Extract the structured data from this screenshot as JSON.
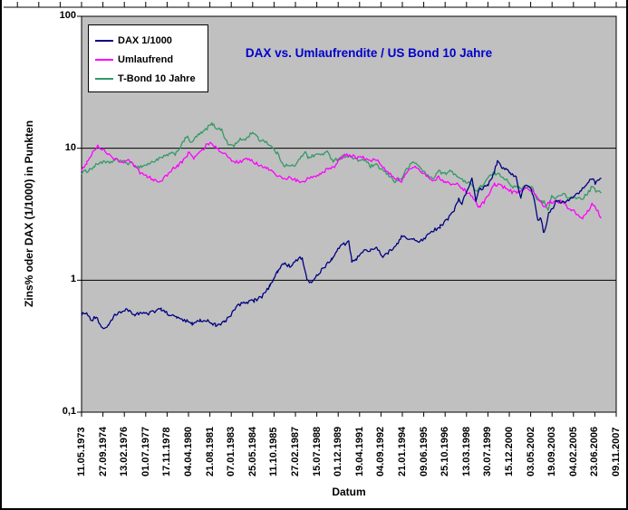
{
  "colors": {
    "title": "#0000CC",
    "plot_bg": "#C0C0C0",
    "axis": "#000000",
    "grid": "#000000",
    "background": "#FFFFFF"
  },
  "chart_data": {
    "type": "line",
    "title": "DAX vs. Umlaufrendite / US Bond 10 Jahre",
    "xlabel": "Datum",
    "ylabel": "Zins% oder DAX (1/1000) in Punkten",
    "y_scale": "log",
    "ylim": [
      0.1,
      100
    ],
    "y_ticks": [
      {
        "label": "100",
        "value": 100
      },
      {
        "label": "10",
        "value": 10
      },
      {
        "label": "1",
        "value": 1
      },
      {
        "label": "0,1",
        "value": 0.1
      }
    ],
    "y_gridlines": [
      1,
      10
    ],
    "legend_position": "top-left",
    "grid": true,
    "x_range_years": [
      1973.36,
      2007.86
    ],
    "x_tick_labels": [
      "11.05.1973",
      "27.09.1974",
      "13.02.1976",
      "01.07.1977",
      "17.11.1978",
      "04.04.1980",
      "21.08.1981",
      "07.01.1983",
      "25.05.1984",
      "11.10.1985",
      "27.02.1987",
      "15.07.1988",
      "01.12.1989",
      "19.04.1991",
      "04.09.1992",
      "21.01.1994",
      "09.06.1995",
      "25.10.1996",
      "13.03.1998",
      "30.07.1999",
      "15.12.2000",
      "03.05.2002",
      "19.09.2003",
      "04.02.2005",
      "23.06.2006",
      "09.11.2007"
    ],
    "series": [
      {
        "name": "DAX 1/1000",
        "color": "#000080",
        "points": [
          [
            1973.36,
            0.55
          ],
          [
            1973.7,
            0.57
          ],
          [
            1974.0,
            0.5
          ],
          [
            1974.3,
            0.53
          ],
          [
            1974.75,
            0.42
          ],
          [
            1975.1,
            0.46
          ],
          [
            1975.5,
            0.54
          ],
          [
            1975.9,
            0.57
          ],
          [
            1976.3,
            0.6
          ],
          [
            1976.8,
            0.55
          ],
          [
            1977.2,
            0.57
          ],
          [
            1977.6,
            0.55
          ],
          [
            1978.0,
            0.58
          ],
          [
            1978.5,
            0.6
          ],
          [
            1979.0,
            0.55
          ],
          [
            1979.5,
            0.52
          ],
          [
            1980.0,
            0.5
          ],
          [
            1980.5,
            0.47
          ],
          [
            1981.0,
            0.5
          ],
          [
            1981.5,
            0.49
          ],
          [
            1982.0,
            0.46
          ],
          [
            1982.6,
            0.48
          ],
          [
            1983.0,
            0.55
          ],
          [
            1983.5,
            0.65
          ],
          [
            1984.0,
            0.68
          ],
          [
            1984.5,
            0.7
          ],
          [
            1985.0,
            0.75
          ],
          [
            1985.5,
            0.9
          ],
          [
            1986.0,
            1.15
          ],
          [
            1986.4,
            1.35
          ],
          [
            1986.8,
            1.28
          ],
          [
            1987.2,
            1.4
          ],
          [
            1987.6,
            1.5
          ],
          [
            1987.9,
            1.0
          ],
          [
            1988.2,
            0.95
          ],
          [
            1988.6,
            1.1
          ],
          [
            1989.0,
            1.25
          ],
          [
            1989.5,
            1.45
          ],
          [
            1989.9,
            1.75
          ],
          [
            1990.2,
            1.85
          ],
          [
            1990.6,
            1.95
          ],
          [
            1990.8,
            1.4
          ],
          [
            1991.1,
            1.45
          ],
          [
            1991.5,
            1.65
          ],
          [
            1992.0,
            1.7
          ],
          [
            1992.4,
            1.75
          ],
          [
            1992.8,
            1.5
          ],
          [
            1993.2,
            1.65
          ],
          [
            1993.7,
            1.85
          ],
          [
            1994.0,
            2.15
          ],
          [
            1994.4,
            2.05
          ],
          [
            1994.8,
            2.05
          ],
          [
            1995.2,
            1.95
          ],
          [
            1995.6,
            2.15
          ],
          [
            1996.0,
            2.35
          ],
          [
            1996.5,
            2.55
          ],
          [
            1997.0,
            2.9
          ],
          [
            1997.4,
            3.4
          ],
          [
            1997.7,
            4.2
          ],
          [
            1997.9,
            3.8
          ],
          [
            1998.2,
            4.6
          ],
          [
            1998.55,
            5.9
          ],
          [
            1998.8,
            4.0
          ],
          [
            1999.0,
            4.9
          ],
          [
            1999.3,
            5.0
          ],
          [
            1999.6,
            5.3
          ],
          [
            1999.9,
            6.2
          ],
          [
            2000.2,
            7.9
          ],
          [
            2000.5,
            7.2
          ],
          [
            2000.8,
            6.8
          ],
          [
            2001.0,
            6.5
          ],
          [
            2001.4,
            6.1
          ],
          [
            2001.7,
            4.2
          ],
          [
            2001.9,
            5.1
          ],
          [
            2002.2,
            5.3
          ],
          [
            2002.5,
            4.4
          ],
          [
            2002.8,
            2.9
          ],
          [
            2003.0,
            2.9
          ],
          [
            2003.2,
            2.25
          ],
          [
            2003.5,
            3.2
          ],
          [
            2003.8,
            3.6
          ],
          [
            2004.0,
            4.0
          ],
          [
            2004.4,
            3.9
          ],
          [
            2004.8,
            4.1
          ],
          [
            2005.2,
            4.3
          ],
          [
            2005.6,
            4.8
          ],
          [
            2006.0,
            5.4
          ],
          [
            2006.3,
            6.0
          ],
          [
            2006.5,
            5.4
          ],
          [
            2006.9,
            5.9
          ]
        ]
      },
      {
        "name": "Umlaufrend",
        "color": "#FF00FF",
        "points": [
          [
            1973.36,
            6.9
          ],
          [
            1973.7,
            7.8
          ],
          [
            1974.0,
            9.0
          ],
          [
            1974.4,
            10.3
          ],
          [
            1974.8,
            9.8
          ],
          [
            1975.2,
            8.7
          ],
          [
            1975.6,
            8.2
          ],
          [
            1976.0,
            7.9
          ],
          [
            1976.4,
            8.0
          ],
          [
            1976.8,
            7.3
          ],
          [
            1977.2,
            6.4
          ],
          [
            1977.6,
            6.1
          ],
          [
            1978.0,
            5.8
          ],
          [
            1978.4,
            5.6
          ],
          [
            1978.8,
            6.1
          ],
          [
            1979.2,
            6.9
          ],
          [
            1979.6,
            7.4
          ],
          [
            1980.0,
            8.2
          ],
          [
            1980.3,
            9.4
          ],
          [
            1980.6,
            8.4
          ],
          [
            1981.0,
            9.3
          ],
          [
            1981.4,
            10.5
          ],
          [
            1981.7,
            11.2
          ],
          [
            1982.0,
            10.2
          ],
          [
            1982.4,
            9.4
          ],
          [
            1982.8,
            8.6
          ],
          [
            1983.2,
            7.8
          ],
          [
            1983.6,
            8.0
          ],
          [
            1984.0,
            8.2
          ],
          [
            1984.4,
            8.0
          ],
          [
            1984.8,
            7.4
          ],
          [
            1985.2,
            7.2
          ],
          [
            1985.6,
            6.7
          ],
          [
            1986.0,
            6.2
          ],
          [
            1986.4,
            5.9
          ],
          [
            1986.8,
            6.0
          ],
          [
            1987.2,
            5.7
          ],
          [
            1987.6,
            5.5
          ],
          [
            1988.0,
            5.9
          ],
          [
            1988.4,
            6.2
          ],
          [
            1988.8,
            6.4
          ],
          [
            1989.2,
            6.9
          ],
          [
            1989.6,
            7.1
          ],
          [
            1990.0,
            8.2
          ],
          [
            1990.4,
            8.9
          ],
          [
            1990.8,
            8.8
          ],
          [
            1991.2,
            8.4
          ],
          [
            1991.6,
            8.5
          ],
          [
            1992.0,
            8.0
          ],
          [
            1992.4,
            8.2
          ],
          [
            1992.8,
            7.3
          ],
          [
            1993.2,
            6.5
          ],
          [
            1993.6,
            6.0
          ],
          [
            1994.0,
            5.6
          ],
          [
            1994.4,
            6.6
          ],
          [
            1994.8,
            7.3
          ],
          [
            1995.2,
            6.8
          ],
          [
            1995.6,
            6.3
          ],
          [
            1996.0,
            5.7
          ],
          [
            1996.4,
            6.0
          ],
          [
            1996.8,
            5.6
          ],
          [
            1997.2,
            5.4
          ],
          [
            1997.6,
            5.3
          ],
          [
            1998.0,
            4.9
          ],
          [
            1998.4,
            4.5
          ],
          [
            1998.8,
            3.9
          ],
          [
            1999.0,
            3.6
          ],
          [
            1999.4,
            4.0
          ],
          [
            1999.8,
            4.9
          ],
          [
            2000.0,
            5.3
          ],
          [
            2000.4,
            5.2
          ],
          [
            2000.8,
            5.0
          ],
          [
            2001.2,
            4.6
          ],
          [
            2001.6,
            4.7
          ],
          [
            2002.0,
            4.9
          ],
          [
            2002.4,
            4.8
          ],
          [
            2002.8,
            4.2
          ],
          [
            2003.2,
            3.6
          ],
          [
            2003.6,
            3.9
          ],
          [
            2004.0,
            3.9
          ],
          [
            2004.4,
            4.0
          ],
          [
            2004.8,
            3.5
          ],
          [
            2005.2,
            3.3
          ],
          [
            2005.6,
            2.9
          ],
          [
            2006.0,
            3.3
          ],
          [
            2006.3,
            3.8
          ],
          [
            2006.6,
            3.4
          ],
          [
            2006.9,
            3.0
          ]
        ]
      },
      {
        "name": "T-Bond 10 Jahre",
        "color": "#339966",
        "points": [
          [
            1973.36,
            6.5
          ],
          [
            1973.8,
            6.8
          ],
          [
            1974.2,
            7.3
          ],
          [
            1974.6,
            7.9
          ],
          [
            1975.0,
            7.7
          ],
          [
            1975.4,
            8.0
          ],
          [
            1975.8,
            8.2
          ],
          [
            1976.2,
            7.8
          ],
          [
            1976.6,
            7.6
          ],
          [
            1977.0,
            7.2
          ],
          [
            1977.4,
            7.4
          ],
          [
            1977.8,
            7.7
          ],
          [
            1978.2,
            8.2
          ],
          [
            1978.6,
            8.5
          ],
          [
            1979.0,
            9.0
          ],
          [
            1979.4,
            9.1
          ],
          [
            1979.8,
            10.5
          ],
          [
            1980.2,
            12.6
          ],
          [
            1980.4,
            10.8
          ],
          [
            1980.8,
            12.4
          ],
          [
            1981.2,
            13.2
          ],
          [
            1981.6,
            14.8
          ],
          [
            1981.8,
            15.3
          ],
          [
            1982.0,
            14.4
          ],
          [
            1982.4,
            13.8
          ],
          [
            1982.8,
            10.7
          ],
          [
            1983.2,
            10.5
          ],
          [
            1983.6,
            11.6
          ],
          [
            1984.0,
            11.8
          ],
          [
            1984.4,
            13.4
          ],
          [
            1984.8,
            11.6
          ],
          [
            1985.2,
            11.4
          ],
          [
            1985.6,
            10.3
          ],
          [
            1986.0,
            9.1
          ],
          [
            1986.4,
            7.5
          ],
          [
            1986.8,
            7.3
          ],
          [
            1987.2,
            7.5
          ],
          [
            1987.6,
            8.8
          ],
          [
            1987.8,
            9.6
          ],
          [
            1988.0,
            8.4
          ],
          [
            1988.4,
            8.9
          ],
          [
            1988.8,
            9.0
          ],
          [
            1989.2,
            9.3
          ],
          [
            1989.6,
            8.1
          ],
          [
            1990.0,
            8.4
          ],
          [
            1990.4,
            8.8
          ],
          [
            1990.8,
            8.5
          ],
          [
            1991.2,
            8.1
          ],
          [
            1991.6,
            8.2
          ],
          [
            1992.0,
            7.3
          ],
          [
            1992.4,
            7.4
          ],
          [
            1992.8,
            6.8
          ],
          [
            1993.2,
            6.2
          ],
          [
            1993.6,
            5.6
          ],
          [
            1994.0,
            5.9
          ],
          [
            1994.4,
            7.1
          ],
          [
            1994.8,
            7.9
          ],
          [
            1995.2,
            7.2
          ],
          [
            1995.6,
            6.3
          ],
          [
            1996.0,
            5.9
          ],
          [
            1996.4,
            6.7
          ],
          [
            1996.8,
            6.4
          ],
          [
            1997.2,
            6.7
          ],
          [
            1997.6,
            6.2
          ],
          [
            1998.0,
            5.6
          ],
          [
            1998.4,
            5.6
          ],
          [
            1998.8,
            4.7
          ],
          [
            1999.2,
            5.2
          ],
          [
            1999.6,
            6.0
          ],
          [
            2000.0,
            6.5
          ],
          [
            2000.4,
            6.2
          ],
          [
            2000.8,
            5.8
          ],
          [
            2001.2,
            5.1
          ],
          [
            2001.6,
            5.0
          ],
          [
            2002.0,
            5.1
          ],
          [
            2002.4,
            5.2
          ],
          [
            2002.8,
            4.0
          ],
          [
            2003.2,
            3.9
          ],
          [
            2003.45,
            3.4
          ],
          [
            2003.7,
            4.3
          ],
          [
            2004.0,
            4.2
          ],
          [
            2004.4,
            4.6
          ],
          [
            2004.8,
            4.1
          ],
          [
            2005.2,
            4.3
          ],
          [
            2005.6,
            4.1
          ],
          [
            2006.0,
            4.5
          ],
          [
            2006.3,
            5.1
          ],
          [
            2006.6,
            4.7
          ],
          [
            2006.9,
            4.6
          ]
        ]
      }
    ]
  }
}
